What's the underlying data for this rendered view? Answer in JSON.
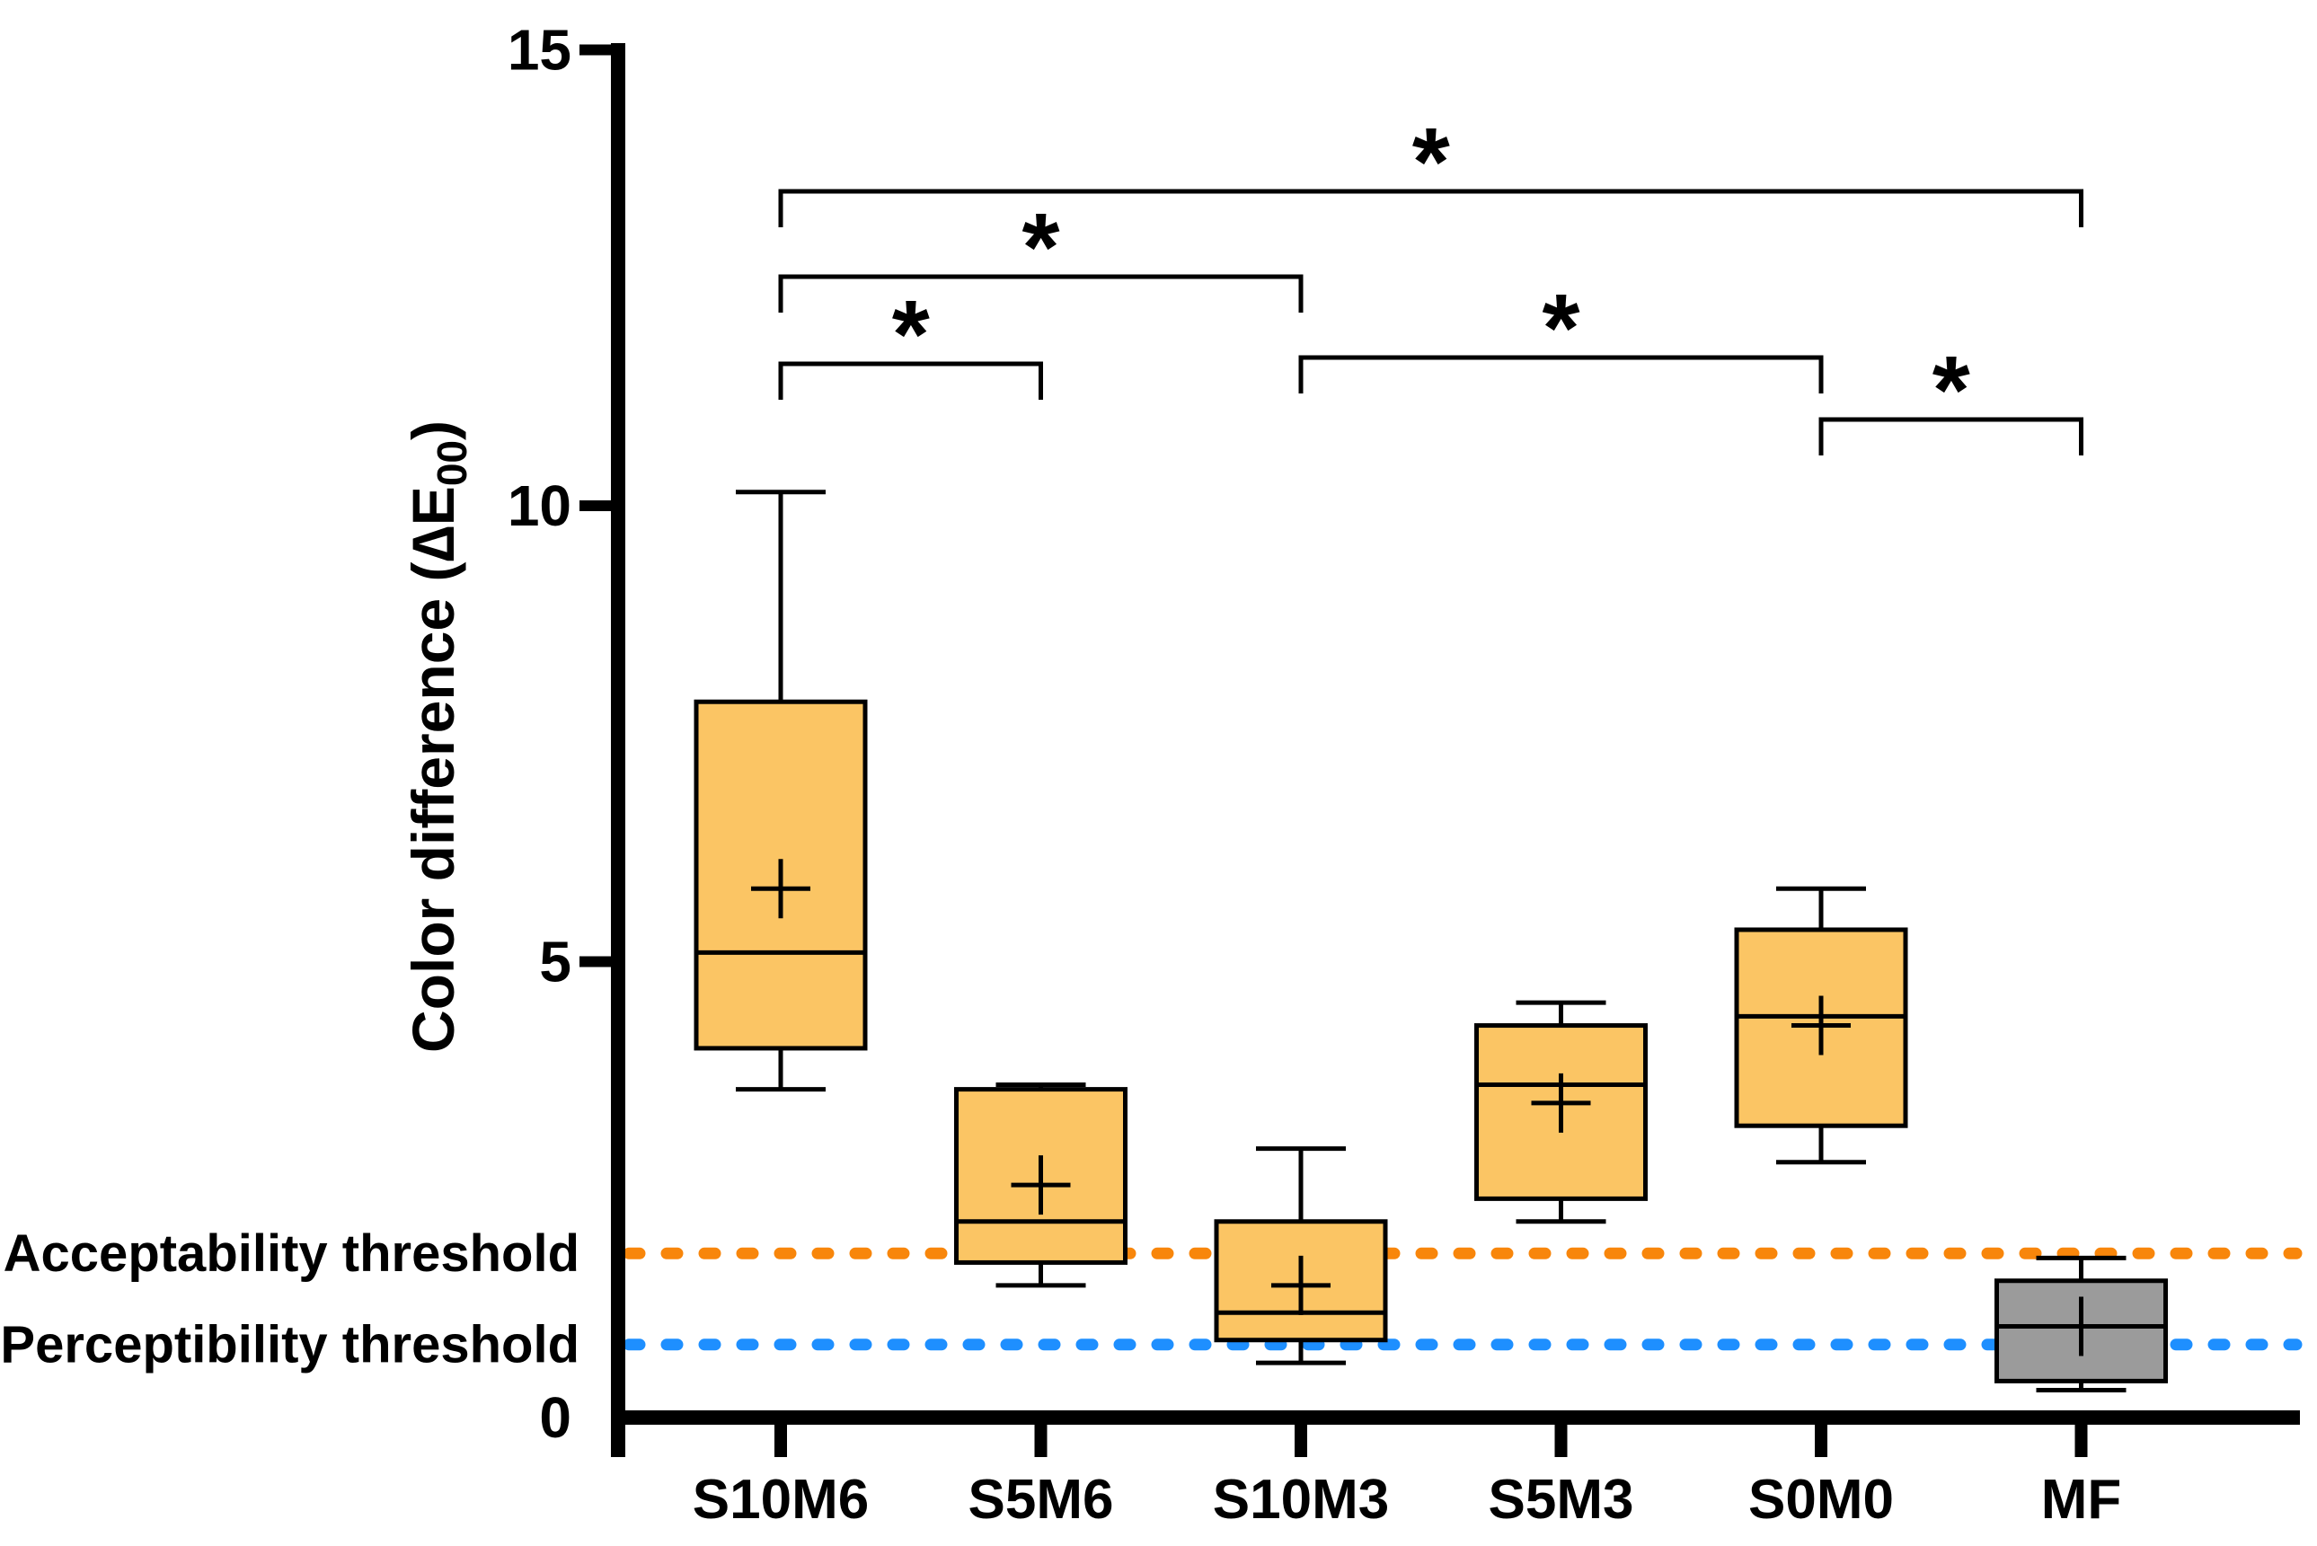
{
  "figure": {
    "background": "#FFFFFF",
    "axis_color": "#000000",
    "text_color": "#000000"
  },
  "chart_data": {
    "type": "box",
    "title": "",
    "xlabel": "",
    "ylabel": {
      "prefix": "Color difference (",
      "symbol": "∆E",
      "subscript": "00",
      "suffix": ")"
    },
    "ylim": [
      0,
      15
    ],
    "yticks": [
      "0",
      "5",
      "10",
      "15"
    ],
    "grid": false,
    "legend_position": "none",
    "categories": [
      "S10M6",
      "S5M6",
      "S10M3",
      "S5M3",
      "S0M0",
      "MF"
    ],
    "series": [
      {
        "name": "S10M6",
        "whisker_low": 3.6,
        "q1": 4.05,
        "median": 5.1,
        "mean": 5.8,
        "q3": 7.85,
        "whisker_high": 10.15,
        "fill": "#FBC564"
      },
      {
        "name": "S5M6",
        "whisker_low": 1.45,
        "q1": 1.7,
        "median": 2.15,
        "mean": 2.55,
        "q3": 3.6,
        "whisker_high": 3.65,
        "fill": "#FBC564"
      },
      {
        "name": "S10M3",
        "whisker_low": 0.6,
        "q1": 0.85,
        "median": 1.15,
        "mean": 1.45,
        "q3": 2.15,
        "whisker_high": 2.95,
        "fill": "#FBC564"
      },
      {
        "name": "S5M3",
        "whisker_low": 2.15,
        "q1": 2.4,
        "median": 3.65,
        "mean": 3.45,
        "q3": 4.3,
        "whisker_high": 4.55,
        "fill": "#FBC564"
      },
      {
        "name": "S0M0",
        "whisker_low": 2.8,
        "q1": 3.2,
        "median": 4.4,
        "mean": 4.3,
        "q3": 5.35,
        "whisker_high": 5.8,
        "fill": "#FBC564"
      },
      {
        "name": "MF",
        "whisker_low": 0.3,
        "q1": 0.4,
        "median": 1.0,
        "mean": 1.0,
        "q3": 1.5,
        "whisker_high": 1.75,
        "fill": "#9B9B9B"
      }
    ],
    "thresholds": [
      {
        "label": "Acceptability threshold",
        "value": 1.8,
        "color": "#F8860B"
      },
      {
        "label": "Perceptibility threshold",
        "value": 0.8,
        "color": "#1E8FFF"
      }
    ],
    "significance_brackets": [
      {
        "from": "S10M6",
        "to": "S5M6",
        "label": "*"
      },
      {
        "from": "S10M6",
        "to": "S10M3",
        "label": "*"
      },
      {
        "from": "S10M6",
        "to": "MF",
        "label": "*"
      },
      {
        "from": "S10M3",
        "to": "S0M0",
        "label": "*"
      },
      {
        "from": "S0M0",
        "to": "MF",
        "label": "*"
      }
    ]
  }
}
